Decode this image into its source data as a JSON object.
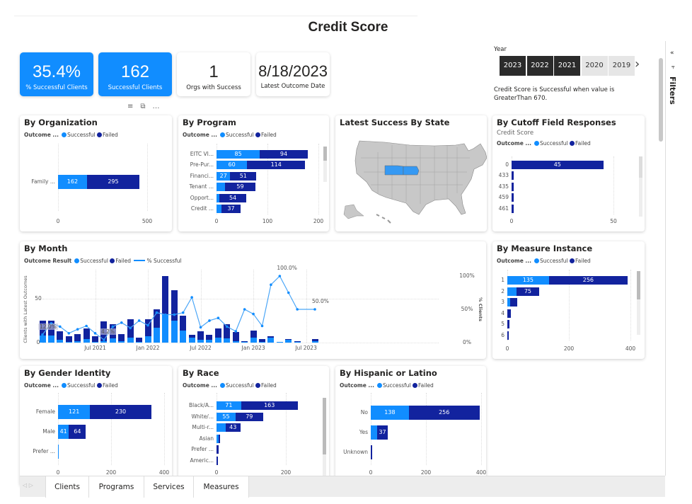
{
  "page_title": "Credit Score",
  "kpis": [
    {
      "value": "35.4%",
      "label": "% Successful Clients"
    },
    {
      "value": "162",
      "label": "Successful Clients"
    },
    {
      "value": "1",
      "label": "Orgs with Success"
    },
    {
      "value": "8/18/2023",
      "label": "Latest Outcome Date"
    }
  ],
  "year_slicer": {
    "label": "Year",
    "years": [
      "2023",
      "2022",
      "2021",
      "2020",
      "2019"
    ],
    "selected": [
      "2023",
      "2022",
      "2021"
    ]
  },
  "note": "Credit Score is Successful when value is GreaterThan 670.",
  "filters_label": "Filters",
  "legend": {
    "title": "Outcome ...",
    "successful": "Successful",
    "failed": "Failed"
  },
  "colors": {
    "successful": "#118dff",
    "failed": "#12239e",
    "map_fill": "#c8c8c8",
    "map_highlight": "#3599f3"
  },
  "map": {
    "title": "Latest Success By State",
    "highlighted": [
      "Nebraska",
      "Iowa"
    ]
  },
  "chart_data": [
    {
      "id": "org",
      "type": "bar",
      "title": "By Organization",
      "categories": [
        "Family ..."
      ],
      "successful": [
        162
      ],
      "failed": [
        295
      ],
      "ticks": [
        0,
        500
      ],
      "xlim": [
        0,
        500
      ]
    },
    {
      "id": "program",
      "type": "bar",
      "title": "By Program",
      "categories": [
        "EITC VI...",
        "Pre-Pur...",
        "Financi...",
        "Tenant ...",
        "Opport...",
        "Credit ..."
      ],
      "successful": [
        85,
        60,
        27,
        17,
        5,
        10
      ],
      "failed": [
        94,
        114,
        51,
        59,
        54,
        37
      ],
      "ticks": [
        0,
        100,
        200
      ],
      "xlim": [
        0,
        200
      ]
    },
    {
      "id": "cutoff",
      "type": "bar",
      "title": "By Cutoff Field Responses",
      "subtitle": "Credit Score",
      "categories": [
        "0",
        "433",
        "435",
        "459",
        "461"
      ],
      "successful": [
        0,
        0,
        0,
        0,
        0
      ],
      "failed": [
        45,
        1,
        1,
        1,
        1
      ],
      "ticks": [
        0,
        50
      ],
      "xlim": [
        0,
        50
      ]
    },
    {
      "id": "measure",
      "type": "bar",
      "title": "By Measure Instance",
      "categories": [
        "1",
        "2",
        "3",
        "4",
        "5",
        "6"
      ],
      "successful": [
        135,
        29,
        10,
        0,
        0,
        0
      ],
      "failed": [
        256,
        75,
        22,
        12,
        8,
        4
      ],
      "ticks": [
        0,
        200,
        400
      ],
      "xlim": [
        0,
        400
      ]
    },
    {
      "id": "gender",
      "type": "bar",
      "title": "By Gender Identity",
      "categories": [
        "Female",
        "Male",
        "Prefer ..."
      ],
      "successful": [
        121,
        41,
        2
      ],
      "failed": [
        230,
        64,
        0
      ],
      "ticks": [
        0,
        200,
        400
      ],
      "xlim": [
        0,
        400
      ]
    },
    {
      "id": "race",
      "type": "bar",
      "title": "By Race",
      "categories": [
        "Black/A...",
        "White/...",
        "Multi-r...",
        "Asian",
        "Prefer ...",
        "Americ..."
      ],
      "successful": [
        71,
        55,
        26,
        7,
        1,
        0
      ],
      "failed": [
        163,
        79,
        43,
        2,
        5,
        4
      ],
      "ticks": [
        0,
        200
      ],
      "xlim": [
        0,
        200
      ]
    },
    {
      "id": "hispanic",
      "type": "bar",
      "title": "By Hispanic or Latino",
      "categories": [
        "No",
        "Yes",
        "Unknown"
      ],
      "successful": [
        138,
        24,
        0
      ],
      "failed": [
        256,
        37,
        2
      ],
      "ticks": [
        0,
        200,
        400
      ],
      "xlim": [
        0,
        400
      ]
    },
    {
      "id": "month",
      "type": "bar+line",
      "title": "By Month",
      "legend_title": "Outcome Result",
      "line_name": "% Successful",
      "ylabel": "Clients with Latest Outcomes",
      "y2label": "% Clients",
      "months": [
        "Jan 2021",
        "Feb 2021",
        "Mar 2021",
        "Apr 2021",
        "May 2021",
        "Jun 2021",
        "Jul 2021",
        "Aug 2021",
        "Sep 2021",
        "Oct 2021",
        "Nov 2021",
        "Dec 2021",
        "Jan 2022",
        "Feb 2022",
        "Mar 2022",
        "Apr 2022",
        "May 2022",
        "Jun 2022",
        "Jul 2022",
        "Aug 2022",
        "Sep 2022",
        "Oct 2022",
        "Nov 2022",
        "Dec 2022",
        "Jan 2023",
        "Feb 2023",
        "Mar 2023",
        "Apr 2023",
        "May 2023",
        "Jun 2023",
        "Jul 2023",
        "Aug 2023"
      ],
      "successful": [
        8,
        8,
        3,
        1,
        2,
        4,
        1,
        2,
        5,
        2,
        6,
        1,
        7,
        17,
        32,
        25,
        14,
        6,
        3,
        3,
        6,
        5,
        2,
        1,
        6,
        1,
        6,
        1,
        3,
        1,
        0,
        2
      ],
      "failed": [
        17,
        17,
        10,
        6,
        8,
        12,
        6,
        22,
        16,
        8,
        21,
        5,
        20,
        21,
        44,
        35,
        17,
        3,
        10,
        6,
        10,
        16,
        10,
        1,
        8,
        3,
        1,
        0,
        1,
        1,
        0,
        2
      ],
      "pct_successful": [
        12,
        29,
        24,
        14,
        20,
        25,
        14,
        4.2,
        24,
        30,
        22,
        33,
        26,
        45,
        42,
        42,
        45,
        68,
        23,
        33,
        37,
        24,
        17,
        50,
        43,
        25,
        87,
        100,
        75,
        50,
        null,
        50
      ],
      "xtick_labels": [
        "Jul 2021",
        "Jan 2022",
        "Jul 2022",
        "Jan 2023",
        "Jul 2023"
      ],
      "yticks": [
        "0",
        "50"
      ],
      "y2ticks": [
        "0%",
        "50%",
        "100%"
      ],
      "ylim": [
        0,
        78
      ],
      "y2lim": [
        0,
        100
      ],
      "data_labels": [
        {
          "month": "Jan 2021",
          "text": "12.0%"
        },
        {
          "month": "Aug 2021",
          "text": "4.2%"
        },
        {
          "month": "Apr 2023",
          "text": "100.0%"
        },
        {
          "month": "Aug 2023",
          "text": "50.0%"
        }
      ]
    }
  ],
  "tabs": [
    "Clients",
    "Programs",
    "Services",
    "Measures"
  ]
}
